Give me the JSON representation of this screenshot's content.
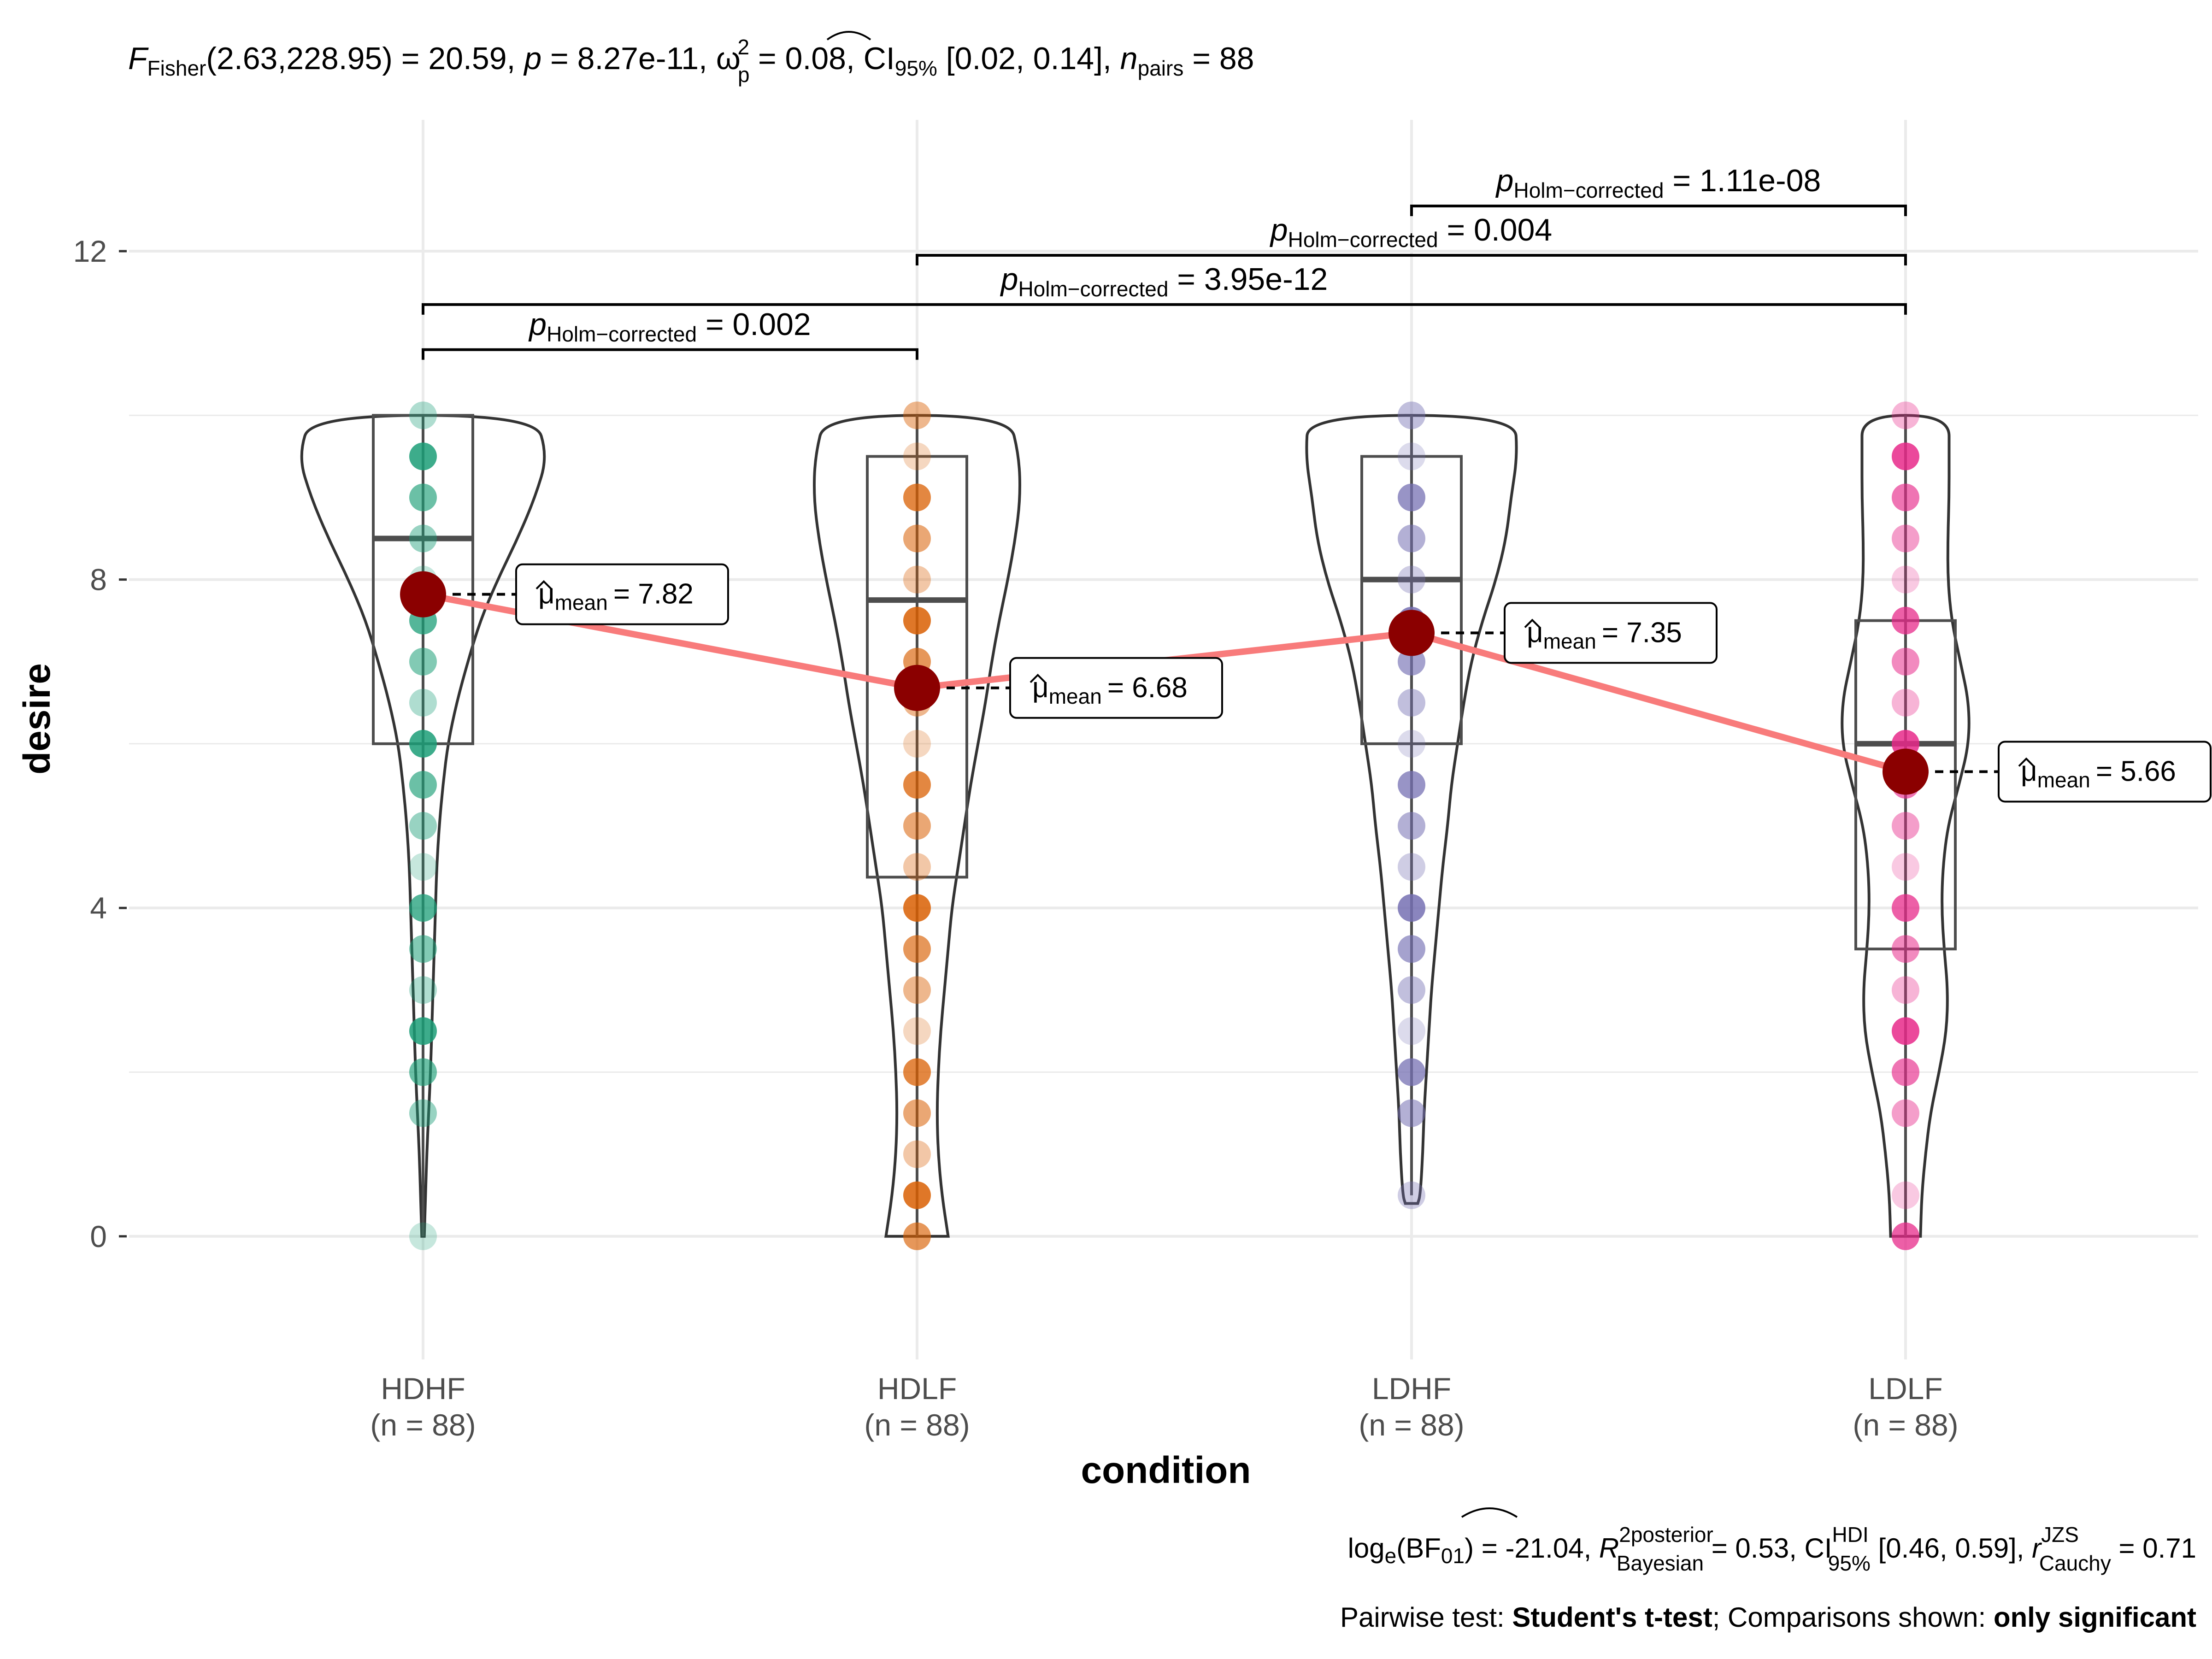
{
  "chart_data": {
    "type": "violin-box-scatter",
    "title": {
      "F_stat": "F",
      "F_sub": "Fisher",
      "F_args": "(2.63,228.95) = 20.59, ",
      "p_sym": "p",
      "p_val": " = 8.27e-11, ",
      "omega_sym": "ω",
      "omega_sub": "p",
      "omega_sup": "2",
      "omega_val": " = 0.08, CI",
      "ci_sub": "95%",
      "ci_val": " [0.02, 0.14], ",
      "n_sym": "n",
      "n_sub": "pairs",
      "n_val": " = 88"
    },
    "xlabel": "condition",
    "ylabel": "desire",
    "ylim": [
      -1.5,
      13.6
    ],
    "yticks": [
      0,
      4,
      8,
      12
    ],
    "ytick_labels": [
      "0",
      "4",
      "8",
      "12"
    ],
    "grid": true,
    "categories": [
      {
        "name": "HDHF",
        "n_label": "(n = 88)",
        "color": "#1b9e77"
      },
      {
        "name": "HDLF",
        "n_label": "(n = 88)",
        "color": "#d95f02"
      },
      {
        "name": "LDHF",
        "n_label": "(n = 88)",
        "color": "#7570b3"
      },
      {
        "name": "LDLF",
        "n_label": "(n = 88)",
        "color": "#e7298a"
      }
    ],
    "means": [
      7.82,
      6.68,
      7.35,
      5.66
    ],
    "mean_labels": [
      "= 7.82",
      "= 6.68",
      "= 7.35",
      "= 5.66"
    ],
    "mean_symbol": "μ",
    "mean_sub": "mean",
    "boxes": [
      {
        "q1": 6.0,
        "median": 8.5,
        "q3": 10.0,
        "whisker_low": 0.0,
        "whisker_high": 10.0
      },
      {
        "q1": 4.375,
        "median": 7.75,
        "q3": 9.5,
        "whisker_low": 0.0,
        "whisker_high": 10.0
      },
      {
        "q1": 6.0,
        "median": 8.0,
        "q3": 9.5,
        "whisker_low": 0.5,
        "whisker_high": 10.0
      },
      {
        "q1": 3.5,
        "median": 6.0,
        "q3": 7.5,
        "whisker_low": 0.0,
        "whisker_high": 10.0
      }
    ],
    "points": [
      [
        0,
        1.5,
        2,
        2.5,
        3,
        3.5,
        4,
        4.5,
        5,
        5.5,
        6,
        6.5,
        7,
        7.5,
        8,
        8.5,
        9,
        9.5,
        10
      ],
      [
        0,
        0.5,
        1,
        1.5,
        2,
        2.5,
        3,
        3.5,
        4,
        4.5,
        5,
        5.5,
        6,
        6.5,
        7,
        7.5,
        8,
        8.5,
        9,
        9.5,
        10
      ],
      [
        0.5,
        1.5,
        2,
        2.5,
        3,
        3.5,
        4,
        4.5,
        5,
        5.5,
        6,
        6.5,
        7,
        7.5,
        8,
        8.5,
        9,
        9.5,
        10
      ],
      [
        0,
        0.5,
        1.5,
        2,
        2.5,
        3,
        3.5,
        4,
        4.5,
        5,
        5.5,
        6,
        6.5,
        7,
        7.5,
        8,
        8.5,
        9,
        9.5,
        10
      ]
    ],
    "violins": [
      [
        [
          0,
          0.01
        ],
        [
          0.5,
          0.02
        ],
        [
          1,
          0.03
        ],
        [
          1.5,
          0.045
        ],
        [
          2,
          0.06
        ],
        [
          2.5,
          0.07
        ],
        [
          3,
          0.08
        ],
        [
          3.5,
          0.09
        ],
        [
          4,
          0.1
        ],
        [
          4.5,
          0.11
        ],
        [
          5,
          0.13
        ],
        [
          5.5,
          0.16
        ],
        [
          6,
          0.2
        ],
        [
          6.5,
          0.27
        ],
        [
          7,
          0.36
        ],
        [
          7.5,
          0.46
        ],
        [
          8,
          0.6
        ],
        [
          8.5,
          0.76
        ],
        [
          9,
          0.9
        ],
        [
          9.5,
          1.0
        ],
        [
          10,
          0.9
        ]
      ],
      [
        [
          0,
          0.25
        ],
        [
          0.5,
          0.2
        ],
        [
          1,
          0.17
        ],
        [
          1.5,
          0.16
        ],
        [
          2,
          0.17
        ],
        [
          2.5,
          0.19
        ],
        [
          3,
          0.22
        ],
        [
          3.5,
          0.25
        ],
        [
          4,
          0.28
        ],
        [
          4.5,
          0.33
        ],
        [
          5,
          0.38
        ],
        [
          5.5,
          0.43
        ],
        [
          6,
          0.49
        ],
        [
          6.5,
          0.55
        ],
        [
          7,
          0.6
        ],
        [
          7.5,
          0.66
        ],
        [
          8,
          0.73
        ],
        [
          8.5,
          0.79
        ],
        [
          9,
          0.83
        ],
        [
          9.5,
          0.82
        ],
        [
          10,
          0.74
        ]
      ],
      [
        [
          0.4,
          0.05
        ],
        [
          0.5,
          0.07
        ],
        [
          1,
          0.09
        ],
        [
          1.5,
          0.1
        ],
        [
          2,
          0.12
        ],
        [
          2.5,
          0.14
        ],
        [
          3,
          0.16
        ],
        [
          3.5,
          0.19
        ],
        [
          4,
          0.22
        ],
        [
          4.5,
          0.25
        ],
        [
          5,
          0.29
        ],
        [
          5.5,
          0.32
        ],
        [
          6,
          0.37
        ],
        [
          6.5,
          0.42
        ],
        [
          7,
          0.48
        ],
        [
          7.5,
          0.57
        ],
        [
          8,
          0.68
        ],
        [
          8.5,
          0.76
        ],
        [
          9,
          0.8
        ],
        [
          9.5,
          0.85
        ],
        [
          10,
          0.83
        ]
      ],
      [
        [
          0,
          0.12
        ],
        [
          0.5,
          0.13
        ],
        [
          1,
          0.16
        ],
        [
          1.5,
          0.2
        ],
        [
          2,
          0.27
        ],
        [
          2.5,
          0.33
        ],
        [
          3,
          0.34
        ],
        [
          3.5,
          0.31
        ],
        [
          4,
          0.29
        ],
        [
          4.5,
          0.3
        ],
        [
          5,
          0.34
        ],
        [
          5.5,
          0.43
        ],
        [
          6,
          0.51
        ],
        [
          6.5,
          0.51
        ],
        [
          7,
          0.44
        ],
        [
          7.5,
          0.37
        ],
        [
          8,
          0.34
        ],
        [
          8.5,
          0.34
        ],
        [
          9,
          0.35
        ],
        [
          9.5,
          0.35
        ],
        [
          10,
          0.35
        ]
      ]
    ],
    "comparisons": [
      {
        "g1": 0,
        "g2": 1,
        "p_sym": "p",
        "p_sub": "Holm−corrected",
        "p_val": " = 0.002"
      },
      {
        "g1": 0,
        "g2": 3,
        "p_sym": "p",
        "p_sub": "Holm−corrected",
        "p_val": " = 3.95e-12"
      },
      {
        "g1": 1,
        "g2": 3,
        "p_sym": "p",
        "p_sub": "Holm−corrected",
        "p_val": " = 0.004"
      },
      {
        "g1": 2,
        "g2": 3,
        "p_sym": "p",
        "p_sub": "Holm−corrected",
        "p_val": " = 1.11e-08"
      }
    ],
    "caption_line1": {
      "a": "log",
      "a_sub": "e",
      "b": "(BF",
      "b_sub": "01",
      "c": ") = -21.04, ",
      "r2_sym": "R",
      "r2_sup": "2",
      "r2_sup_word": "posterior",
      "r2_sub": "Bayesian",
      "d": " = 0.53, CI",
      "ci_sup": "HDI",
      "ci_sub": "95%",
      "e": " [0.46, 0.59], ",
      "r_sym": "r",
      "r_sup": "JZS",
      "r_sub": "Cauchy",
      "f": " = 0.71"
    },
    "caption_line2": {
      "a": "Pairwise test: ",
      "b": "Student's t-test",
      "c": "; Comparisons shown: ",
      "d": "only significant"
    },
    "colors": {
      "mean_point": "#8b0000",
      "mean_line": "#f87b7b",
      "outline": "#333333",
      "grid": "#ebebeb"
    }
  }
}
